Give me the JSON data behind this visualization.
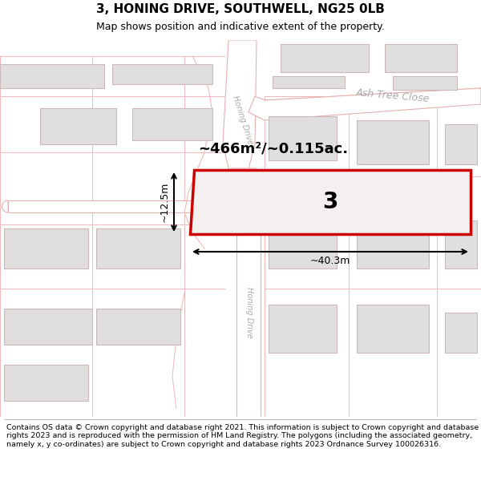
{
  "title": "3, HONING DRIVE, SOUTHWELL, NG25 0LB",
  "subtitle": "Map shows position and indicative extent of the property.",
  "footer": "Contains OS data © Crown copyright and database right 2021. This information is subject to Crown copyright and database rights 2023 and is reproduced with the permission of HM Land Registry. The polygons (including the associated geometry, namely x, y co-ordinates) are subject to Crown copyright and database rights 2023 Ordnance Survey 100026316.",
  "bg_color": "#f8f4f4",
  "road_color": "#ffffff",
  "road_border_color": "#e8b0b0",
  "plot_line_color": "#f0b8b8",
  "building_fill": "#e0dede",
  "building_border": "#ccb8b8",
  "highlight_fill": "#f5f0f0",
  "highlight_border": "#cc0000",
  "area_text": "~466m²/~0.115ac.",
  "number_text": "3",
  "width_text": "~40.3m",
  "height_text": "~12.5m",
  "street_label_upper": "Honing Drive",
  "street_label_lower": "Honing Drive",
  "ash_tree_label": "Ash Tree Close"
}
